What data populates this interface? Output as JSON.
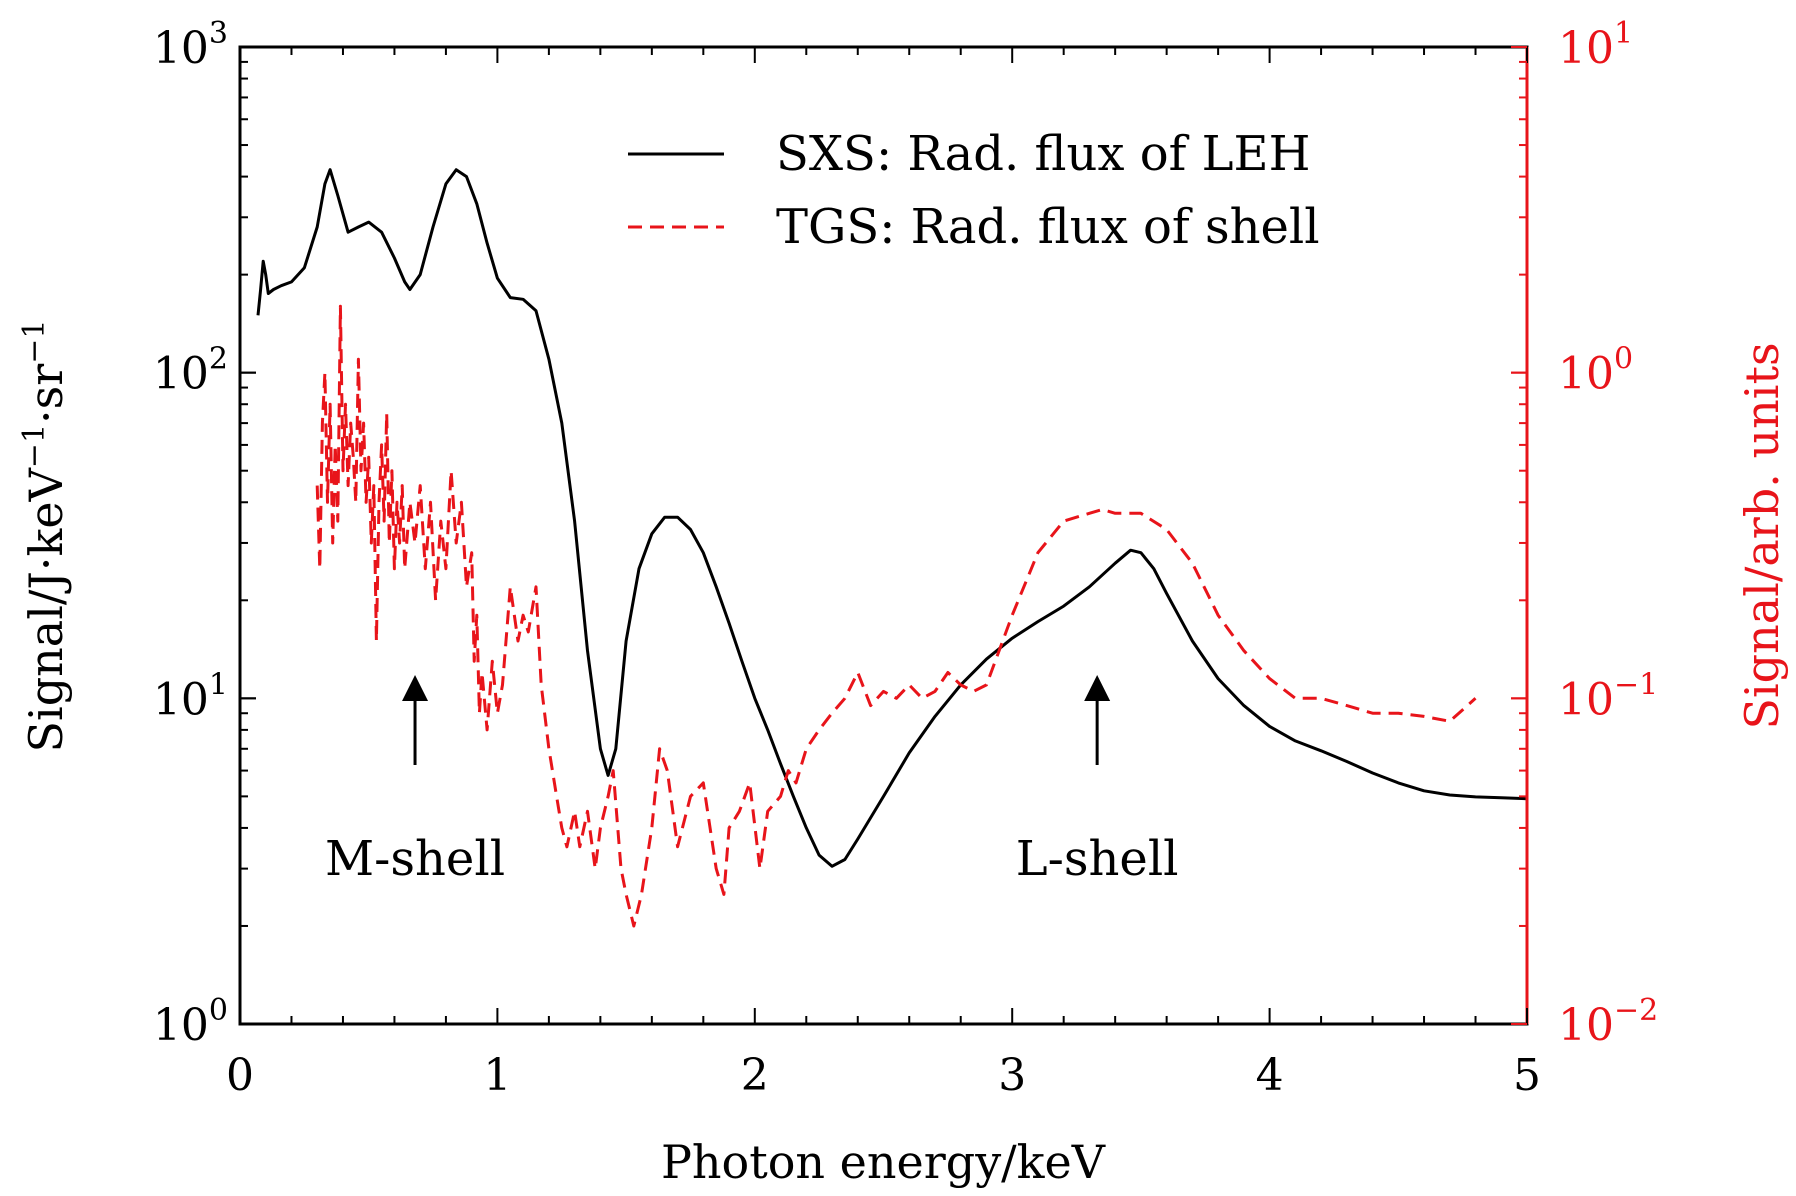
{
  "chart_data": {
    "type": "line",
    "xlabel": "Photon energy/keV",
    "ylabel_left": "Signal/J·keV⁻¹·sr⁻¹",
    "ylabel_right": "Signal/arb. units",
    "xlim": [
      0,
      5
    ],
    "ylim_left": [
      1,
      1000
    ],
    "ylim_right": [
      0.01,
      10
    ],
    "yscale": "log",
    "grid": false,
    "legend_position": "top-right",
    "x_ticks": [
      "0",
      "1",
      "2",
      "3",
      "4",
      "5"
    ],
    "y_left_ticks": [
      {
        "value": 1,
        "base": "10",
        "exp": "0"
      },
      {
        "value": 10,
        "base": "10",
        "exp": "1"
      },
      {
        "value": 100,
        "base": "10",
        "exp": "2"
      },
      {
        "value": 1000,
        "base": "10",
        "exp": "3"
      }
    ],
    "y_right_ticks": [
      {
        "value": 0.01,
        "base": "10",
        "exp": "−2"
      },
      {
        "value": 0.1,
        "base": "10",
        "exp": "−1"
      },
      {
        "value": 1,
        "base": "10",
        "exp": "0"
      },
      {
        "value": 10,
        "base": "10",
        "exp": "1"
      }
    ],
    "series": [
      {
        "name": "SXS: Rad. flux of LEH",
        "axis": "left",
        "color": "#000000",
        "style": "solid",
        "points": [
          [
            0.07,
            150
          ],
          [
            0.08,
            180
          ],
          [
            0.09,
            220
          ],
          [
            0.1,
            200
          ],
          [
            0.11,
            175
          ],
          [
            0.13,
            180
          ],
          [
            0.16,
            185
          ],
          [
            0.2,
            190
          ],
          [
            0.25,
            210
          ],
          [
            0.3,
            280
          ],
          [
            0.33,
            380
          ],
          [
            0.35,
            420
          ],
          [
            0.38,
            350
          ],
          [
            0.42,
            270
          ],
          [
            0.46,
            280
          ],
          [
            0.5,
            290
          ],
          [
            0.55,
            270
          ],
          [
            0.6,
            225
          ],
          [
            0.64,
            190
          ],
          [
            0.66,
            180
          ],
          [
            0.7,
            200
          ],
          [
            0.75,
            280
          ],
          [
            0.8,
            380
          ],
          [
            0.84,
            420
          ],
          [
            0.88,
            400
          ],
          [
            0.92,
            330
          ],
          [
            0.96,
            250
          ],
          [
            1.0,
            195
          ],
          [
            1.05,
            170
          ],
          [
            1.1,
            168
          ],
          [
            1.15,
            155
          ],
          [
            1.2,
            110
          ],
          [
            1.25,
            70
          ],
          [
            1.3,
            35
          ],
          [
            1.35,
            14
          ],
          [
            1.4,
            7
          ],
          [
            1.43,
            5.8
          ],
          [
            1.46,
            7
          ],
          [
            1.5,
            15
          ],
          [
            1.55,
            25
          ],
          [
            1.6,
            32
          ],
          [
            1.65,
            36
          ],
          [
            1.7,
            36
          ],
          [
            1.75,
            33
          ],
          [
            1.8,
            28
          ],
          [
            1.85,
            22
          ],
          [
            1.9,
            17
          ],
          [
            1.95,
            13
          ],
          [
            2.0,
            10
          ],
          [
            2.05,
            8
          ],
          [
            2.1,
            6.3
          ],
          [
            2.15,
            5
          ],
          [
            2.2,
            4
          ],
          [
            2.25,
            3.3
          ],
          [
            2.3,
            3.05
          ],
          [
            2.35,
            3.2
          ],
          [
            2.4,
            3.7
          ],
          [
            2.5,
            5
          ],
          [
            2.6,
            6.8
          ],
          [
            2.7,
            8.8
          ],
          [
            2.8,
            11
          ],
          [
            2.9,
            13.2
          ],
          [
            3.0,
            15.3
          ],
          [
            3.1,
            17.2
          ],
          [
            3.2,
            19.2
          ],
          [
            3.3,
            22
          ],
          [
            3.4,
            26
          ],
          [
            3.46,
            28.5
          ],
          [
            3.5,
            28
          ],
          [
            3.55,
            25
          ],
          [
            3.6,
            21
          ],
          [
            3.7,
            15
          ],
          [
            3.8,
            11.5
          ],
          [
            3.9,
            9.5
          ],
          [
            4.0,
            8.2
          ],
          [
            4.1,
            7.4
          ],
          [
            4.2,
            6.9
          ],
          [
            4.3,
            6.4
          ],
          [
            4.4,
            5.9
          ],
          [
            4.5,
            5.5
          ],
          [
            4.6,
            5.2
          ],
          [
            4.7,
            5.05
          ],
          [
            4.8,
            4.98
          ],
          [
            4.9,
            4.95
          ],
          [
            5.0,
            4.92
          ]
        ]
      },
      {
        "name": "TGS: Rad. flux of shell",
        "axis": "right",
        "color": "#e8141a",
        "style": "dashed",
        "points": [
          [
            0.3,
            0.45
          ],
          [
            0.31,
            0.25
          ],
          [
            0.32,
            0.7
          ],
          [
            0.33,
            1.0
          ],
          [
            0.34,
            0.4
          ],
          [
            0.35,
            0.8
          ],
          [
            0.36,
            0.3
          ],
          [
            0.37,
            0.6
          ],
          [
            0.38,
            0.35
          ],
          [
            0.39,
            1.6
          ],
          [
            0.4,
            0.5
          ],
          [
            0.41,
            0.8
          ],
          [
            0.42,
            0.45
          ],
          [
            0.43,
            0.7
          ],
          [
            0.44,
            0.55
          ],
          [
            0.45,
            0.4
          ],
          [
            0.46,
            1.1
          ],
          [
            0.47,
            0.5
          ],
          [
            0.48,
            0.7
          ],
          [
            0.49,
            0.4
          ],
          [
            0.5,
            0.55
          ],
          [
            0.51,
            0.3
          ],
          [
            0.52,
            0.45
          ],
          [
            0.53,
            0.15
          ],
          [
            0.54,
            0.4
          ],
          [
            0.55,
            0.6
          ],
          [
            0.56,
            0.35
          ],
          [
            0.57,
            0.75
          ],
          [
            0.58,
            0.3
          ],
          [
            0.59,
            0.5
          ],
          [
            0.6,
            0.25
          ],
          [
            0.61,
            0.4
          ],
          [
            0.62,
            0.3
          ],
          [
            0.63,
            0.45
          ],
          [
            0.64,
            0.25
          ],
          [
            0.66,
            0.4
          ],
          [
            0.68,
            0.3
          ],
          [
            0.7,
            0.45
          ],
          [
            0.72,
            0.25
          ],
          [
            0.74,
            0.4
          ],
          [
            0.76,
            0.2
          ],
          [
            0.78,
            0.35
          ],
          [
            0.8,
            0.25
          ],
          [
            0.82,
            0.5
          ],
          [
            0.84,
            0.3
          ],
          [
            0.86,
            0.4
          ],
          [
            0.88,
            0.22
          ],
          [
            0.9,
            0.28
          ],
          [
            0.91,
            0.13
          ],
          [
            0.92,
            0.18
          ],
          [
            0.93,
            0.09
          ],
          [
            0.94,
            0.12
          ],
          [
            0.96,
            0.08
          ],
          [
            0.98,
            0.13
          ],
          [
            1.0,
            0.09
          ],
          [
            1.02,
            0.11
          ],
          [
            1.05,
            0.22
          ],
          [
            1.08,
            0.15
          ],
          [
            1.1,
            0.18
          ],
          [
            1.12,
            0.16
          ],
          [
            1.15,
            0.22
          ],
          [
            1.17,
            0.11
          ],
          [
            1.2,
            0.07
          ],
          [
            1.23,
            0.05
          ],
          [
            1.25,
            0.04
          ],
          [
            1.27,
            0.035
          ],
          [
            1.3,
            0.045
          ],
          [
            1.32,
            0.035
          ],
          [
            1.35,
            0.045
          ],
          [
            1.38,
            0.03
          ],
          [
            1.4,
            0.04
          ],
          [
            1.43,
            0.05
          ],
          [
            1.45,
            0.06
          ],
          [
            1.48,
            0.03
          ],
          [
            1.5,
            0.025
          ],
          [
            1.53,
            0.02
          ],
          [
            1.56,
            0.025
          ],
          [
            1.6,
            0.04
          ],
          [
            1.63,
            0.07
          ],
          [
            1.66,
            0.06
          ],
          [
            1.7,
            0.035
          ],
          [
            1.75,
            0.05
          ],
          [
            1.8,
            0.055
          ],
          [
            1.85,
            0.03
          ],
          [
            1.88,
            0.025
          ],
          [
            1.9,
            0.04
          ],
          [
            1.94,
            0.045
          ],
          [
            1.98,
            0.055
          ],
          [
            2.02,
            0.03
          ],
          [
            2.05,
            0.045
          ],
          [
            2.1,
            0.05
          ],
          [
            2.13,
            0.06
          ],
          [
            2.16,
            0.055
          ],
          [
            2.2,
            0.07
          ],
          [
            2.25,
            0.08
          ],
          [
            2.3,
            0.09
          ],
          [
            2.35,
            0.1
          ],
          [
            2.4,
            0.12
          ],
          [
            2.45,
            0.095
          ],
          [
            2.5,
            0.105
          ],
          [
            2.55,
            0.1
          ],
          [
            2.6,
            0.11
          ],
          [
            2.65,
            0.1
          ],
          [
            2.7,
            0.105
          ],
          [
            2.75,
            0.12
          ],
          [
            2.8,
            0.11
          ],
          [
            2.85,
            0.105
          ],
          [
            2.9,
            0.11
          ],
          [
            3.0,
            0.18
          ],
          [
            3.1,
            0.28
          ],
          [
            3.2,
            0.35
          ],
          [
            3.3,
            0.37
          ],
          [
            3.35,
            0.38
          ],
          [
            3.4,
            0.37
          ],
          [
            3.5,
            0.37
          ],
          [
            3.6,
            0.33
          ],
          [
            3.7,
            0.26
          ],
          [
            3.8,
            0.18
          ],
          [
            3.9,
            0.14
          ],
          [
            4.0,
            0.115
          ],
          [
            4.1,
            0.1
          ],
          [
            4.2,
            0.1
          ],
          [
            4.3,
            0.095
          ],
          [
            4.4,
            0.09
          ],
          [
            4.5,
            0.09
          ],
          [
            4.6,
            0.088
          ],
          [
            4.7,
            0.085
          ],
          [
            4.8,
            0.1
          ]
        ]
      }
    ],
    "annotations": [
      {
        "text": "M-shell",
        "x": 0.68
      },
      {
        "text": "L-shell",
        "x": 3.33
      }
    ]
  }
}
